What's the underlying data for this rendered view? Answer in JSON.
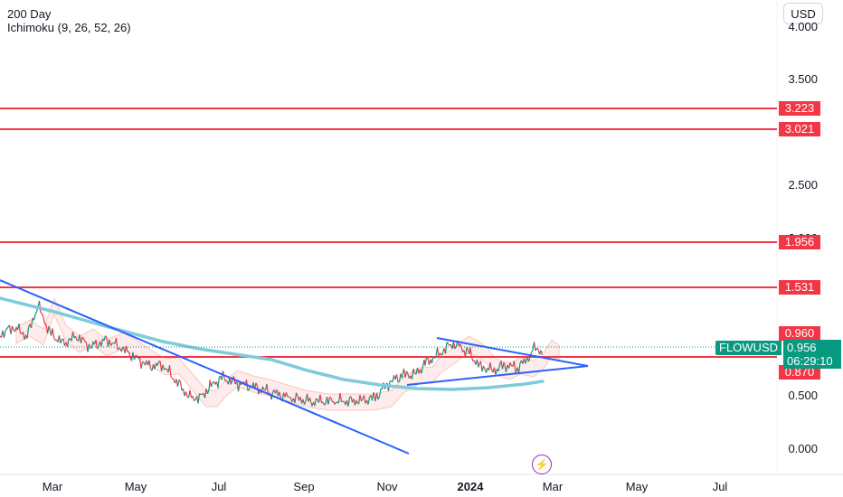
{
  "legend": {
    "timeframe": "200 Day",
    "indicator": "Ichimoku (9, 26, 52, 26)"
  },
  "currency_button": "USD",
  "icons": {
    "flash": "lightning-icon"
  },
  "symbol": {
    "name": "FLOWUSD",
    "last_price": "0.956",
    "countdown": "06:29:10",
    "color": "#089981"
  },
  "colors": {
    "level": "#f23645",
    "trendline": "#2962ff",
    "ma200": "#7ecbd9",
    "up": "#089981",
    "down": "#f23645"
  },
  "price_axis": {
    "ticks": [
      "4.000",
      "3.500",
      "2.500",
      "2.000",
      "0.500",
      "0.000"
    ]
  },
  "levels": [
    {
      "label": "3.223"
    },
    {
      "label": "3.021"
    },
    {
      "label": "1.956"
    },
    {
      "label": "1.531"
    },
    {
      "label": "0.960"
    },
    {
      "label": "0.870"
    }
  ],
  "time_axis": {
    "ticks": [
      {
        "label": "Mar",
        "bold": false
      },
      {
        "label": "May",
        "bold": false
      },
      {
        "label": "Jul",
        "bold": false
      },
      {
        "label": "Sep",
        "bold": false
      },
      {
        "label": "Nov",
        "bold": false
      },
      {
        "label": "2024",
        "bold": true
      },
      {
        "label": "Mar",
        "bold": false
      },
      {
        "label": "May",
        "bold": false
      },
      {
        "label": "Jul",
        "bold": false
      }
    ]
  },
  "chart_data": {
    "type": "line",
    "series": [
      {
        "name": "FLOWUSD"
      },
      {
        "name": "200 Day"
      }
    ],
    "ylim": [
      0,
      4.0
    ],
    "horizontal_levels": [
      3.223,
      3.021,
      1.956,
      1.531,
      0.96,
      0.87
    ],
    "last_price": 0.956
  }
}
